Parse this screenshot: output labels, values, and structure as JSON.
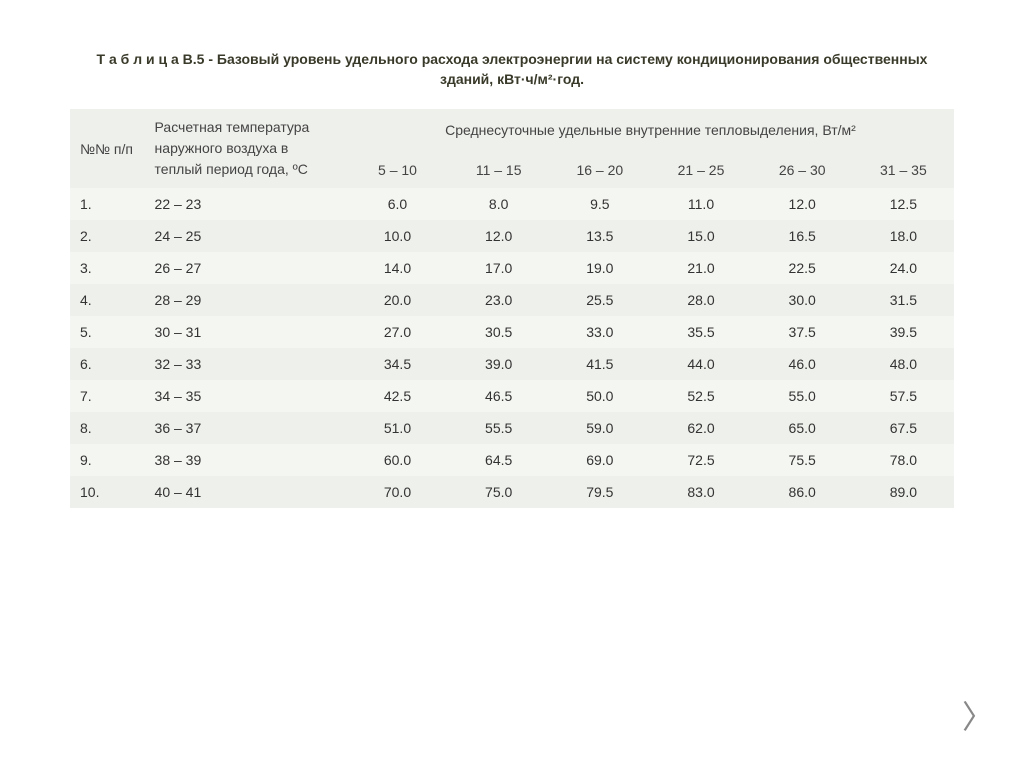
{
  "title": "Т а б л и ц а В.5 - Базовый уровень удельного расхода электроэнергии на систему кондиционирования общественных зданий, кВт·ч/м²·год.",
  "header": {
    "num": "№№ п/п",
    "temp": "Расчетная температура наружного воздуха в теплый период года, ºС",
    "group": "Среднесуточные удельные внутренние тепловыделения, Вт/м²",
    "cols": [
      "5 – 10",
      "11 – 15",
      "16 – 20",
      "21 – 25",
      "26 – 30",
      "31 – 35"
    ]
  },
  "rows": [
    {
      "n": "1.",
      "t": "22 – 23",
      "v": [
        "6.0",
        "8.0",
        "9.5",
        "11.0",
        "12.0",
        "12.5"
      ]
    },
    {
      "n": "2.",
      "t": "24 – 25",
      "v": [
        "10.0",
        "12.0",
        "13.5",
        "15.0",
        "16.5",
        "18.0"
      ]
    },
    {
      "n": "3.",
      "t": "26 – 27",
      "v": [
        "14.0",
        "17.0",
        "19.0",
        "21.0",
        "22.5",
        "24.0"
      ]
    },
    {
      "n": "4.",
      "t": "28 – 29",
      "v": [
        "20.0",
        "23.0",
        "25.5",
        "28.0",
        "30.0",
        "31.5"
      ]
    },
    {
      "n": "5.",
      "t": "30 – 31",
      "v": [
        "27.0",
        "30.5",
        "33.0",
        "35.5",
        "37.5",
        "39.5"
      ]
    },
    {
      "n": "6.",
      "t": "32 – 33",
      "v": [
        "34.5",
        "39.0",
        "41.5",
        "44.0",
        "46.0",
        "48.0"
      ]
    },
    {
      "n": "7.",
      "t": "34 – 35",
      "v": [
        "42.5",
        "46.5",
        "50.0",
        "52.5",
        "55.0",
        "57.5"
      ]
    },
    {
      "n": "8.",
      "t": "36 – 37",
      "v": [
        "51.0",
        "55.5",
        "59.0",
        "62.0",
        "65.0",
        "67.5"
      ]
    },
    {
      "n": "9.",
      "t": "38 – 39",
      "v": [
        "60.0",
        "64.5",
        "69.0",
        "72.5",
        "75.5",
        "78.0"
      ]
    },
    {
      "n": "10.",
      "t": "40 – 41",
      "v": [
        "70.0",
        "75.0",
        "79.5",
        "83.0",
        "86.0",
        "89.0"
      ]
    }
  ]
}
